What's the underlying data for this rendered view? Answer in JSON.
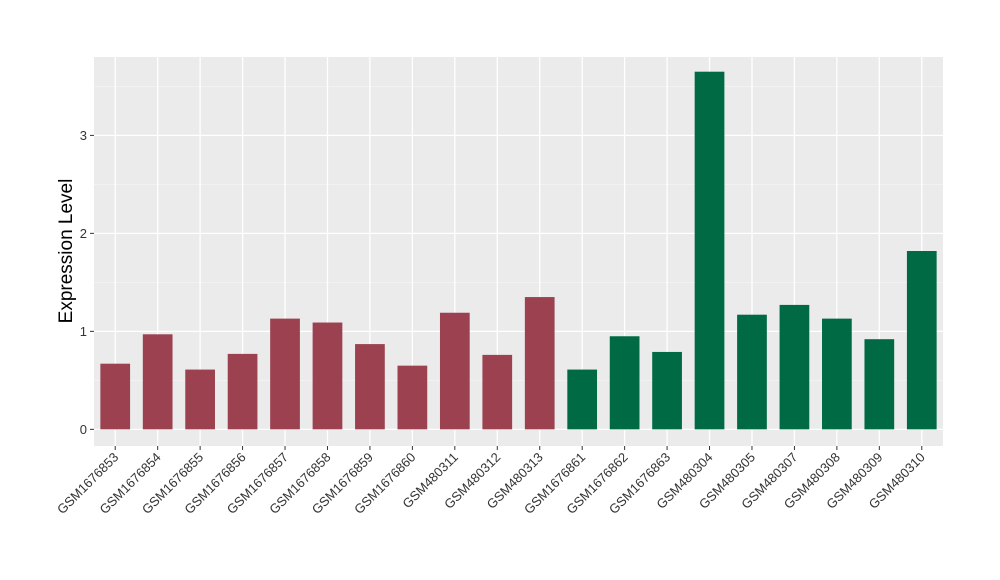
{
  "chart_data": {
    "type": "bar",
    "title": "",
    "xlabel": "",
    "ylabel": "Expression Level",
    "ylim": [
      -0.17,
      3.8
    ],
    "yticks": [
      0,
      1,
      2,
      3
    ],
    "grid": true,
    "background": "#EBEBEB",
    "categories": [
      "GSM1676853",
      "GSM1676854",
      "GSM1676855",
      "GSM1676856",
      "GSM1676857",
      "GSM1676858",
      "GSM1676859",
      "GSM1676860",
      "GSM480311",
      "GSM480312",
      "GSM480313",
      "GSM1676861",
      "GSM1676862",
      "GSM1676863",
      "GSM480304",
      "GSM480305",
      "GSM480307",
      "GSM480308",
      "GSM480309",
      "GSM480310"
    ],
    "values": [
      0.67,
      0.97,
      0.61,
      0.77,
      1.13,
      1.09,
      0.87,
      0.65,
      1.19,
      0.76,
      1.35,
      0.61,
      0.95,
      0.79,
      3.65,
      1.17,
      1.27,
      1.13,
      0.92,
      1.82
    ],
    "bar_colors": [
      "#9B4150",
      "#9B4150",
      "#9B4150",
      "#9B4150",
      "#9B4150",
      "#9B4150",
      "#9B4150",
      "#9B4150",
      "#9B4150",
      "#9B4150",
      "#9B4150",
      "#006A45",
      "#006A45",
      "#006A45",
      "#006A45",
      "#006A45",
      "#006A45",
      "#006A45",
      "#006A45",
      "#006A45"
    ]
  }
}
